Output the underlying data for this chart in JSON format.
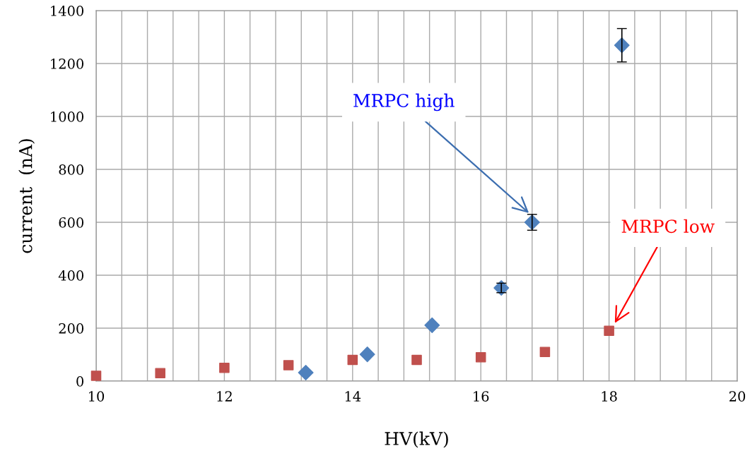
{
  "chart_data": {
    "type": "scatter",
    "xlabel": "HV(kV)",
    "ylabel": "current  (nA)",
    "xlim": [
      10,
      20
    ],
    "ylim": [
      0,
      1400
    ],
    "xticks": [
      10,
      {
        "value": 10.4,
        "label": null
      },
      {
        "value": 10.8,
        "label": null
      },
      {
        "value": 11.2,
        "label": null
      },
      {
        "value": 11.6,
        "label": null
      },
      12,
      {
        "value": 12.4,
        "label": null
      },
      {
        "value": 12.8,
        "label": null
      },
      {
        "value": 13.2,
        "label": null
      },
      {
        "value": 13.6,
        "label": null
      },
      14,
      {
        "value": 14.4,
        "label": null
      },
      {
        "value": 14.8,
        "label": null
      },
      {
        "value": 15.2,
        "label": null
      },
      {
        "value": 15.6,
        "label": null
      },
      16,
      {
        "value": 16.4,
        "label": null
      },
      {
        "value": 16.8,
        "label": null
      },
      {
        "value": 17.2,
        "label": null
      },
      {
        "value": 17.6,
        "label": null
      },
      18,
      {
        "value": 18.4,
        "label": null
      },
      {
        "value": 18.8,
        "label": null
      },
      {
        "value": 19.2,
        "label": null
      },
      {
        "value": 19.6,
        "label": null
      },
      20
    ],
    "yticks": [
      0,
      200,
      400,
      600,
      800,
      1000,
      1200,
      1400
    ],
    "grid": true,
    "series": [
      {
        "color": "#4f81bd",
        "marker": "diamond",
        "x": [
          13.27,
          14.23,
          15.24,
          16.32,
          16.8,
          18.2
        ],
        "values": [
          32,
          101,
          211,
          352,
          600,
          1269
        ],
        "errors": [
          null,
          null,
          null,
          18,
          30,
          63
        ]
      },
      {
        "color": "#c0504d",
        "marker": "square",
        "x": [
          10,
          11,
          12,
          13,
          14,
          15,
          16,
          17,
          18
        ],
        "values": [
          20,
          30,
          50,
          60,
          80,
          80,
          90,
          110,
          190
        ]
      }
    ],
    "annotations": [
      {
        "text": "MRPC high",
        "x": 16.75,
        "y": 635
      },
      {
        "text": "MRPC low",
        "x": 18.09,
        "y": 219
      }
    ]
  }
}
